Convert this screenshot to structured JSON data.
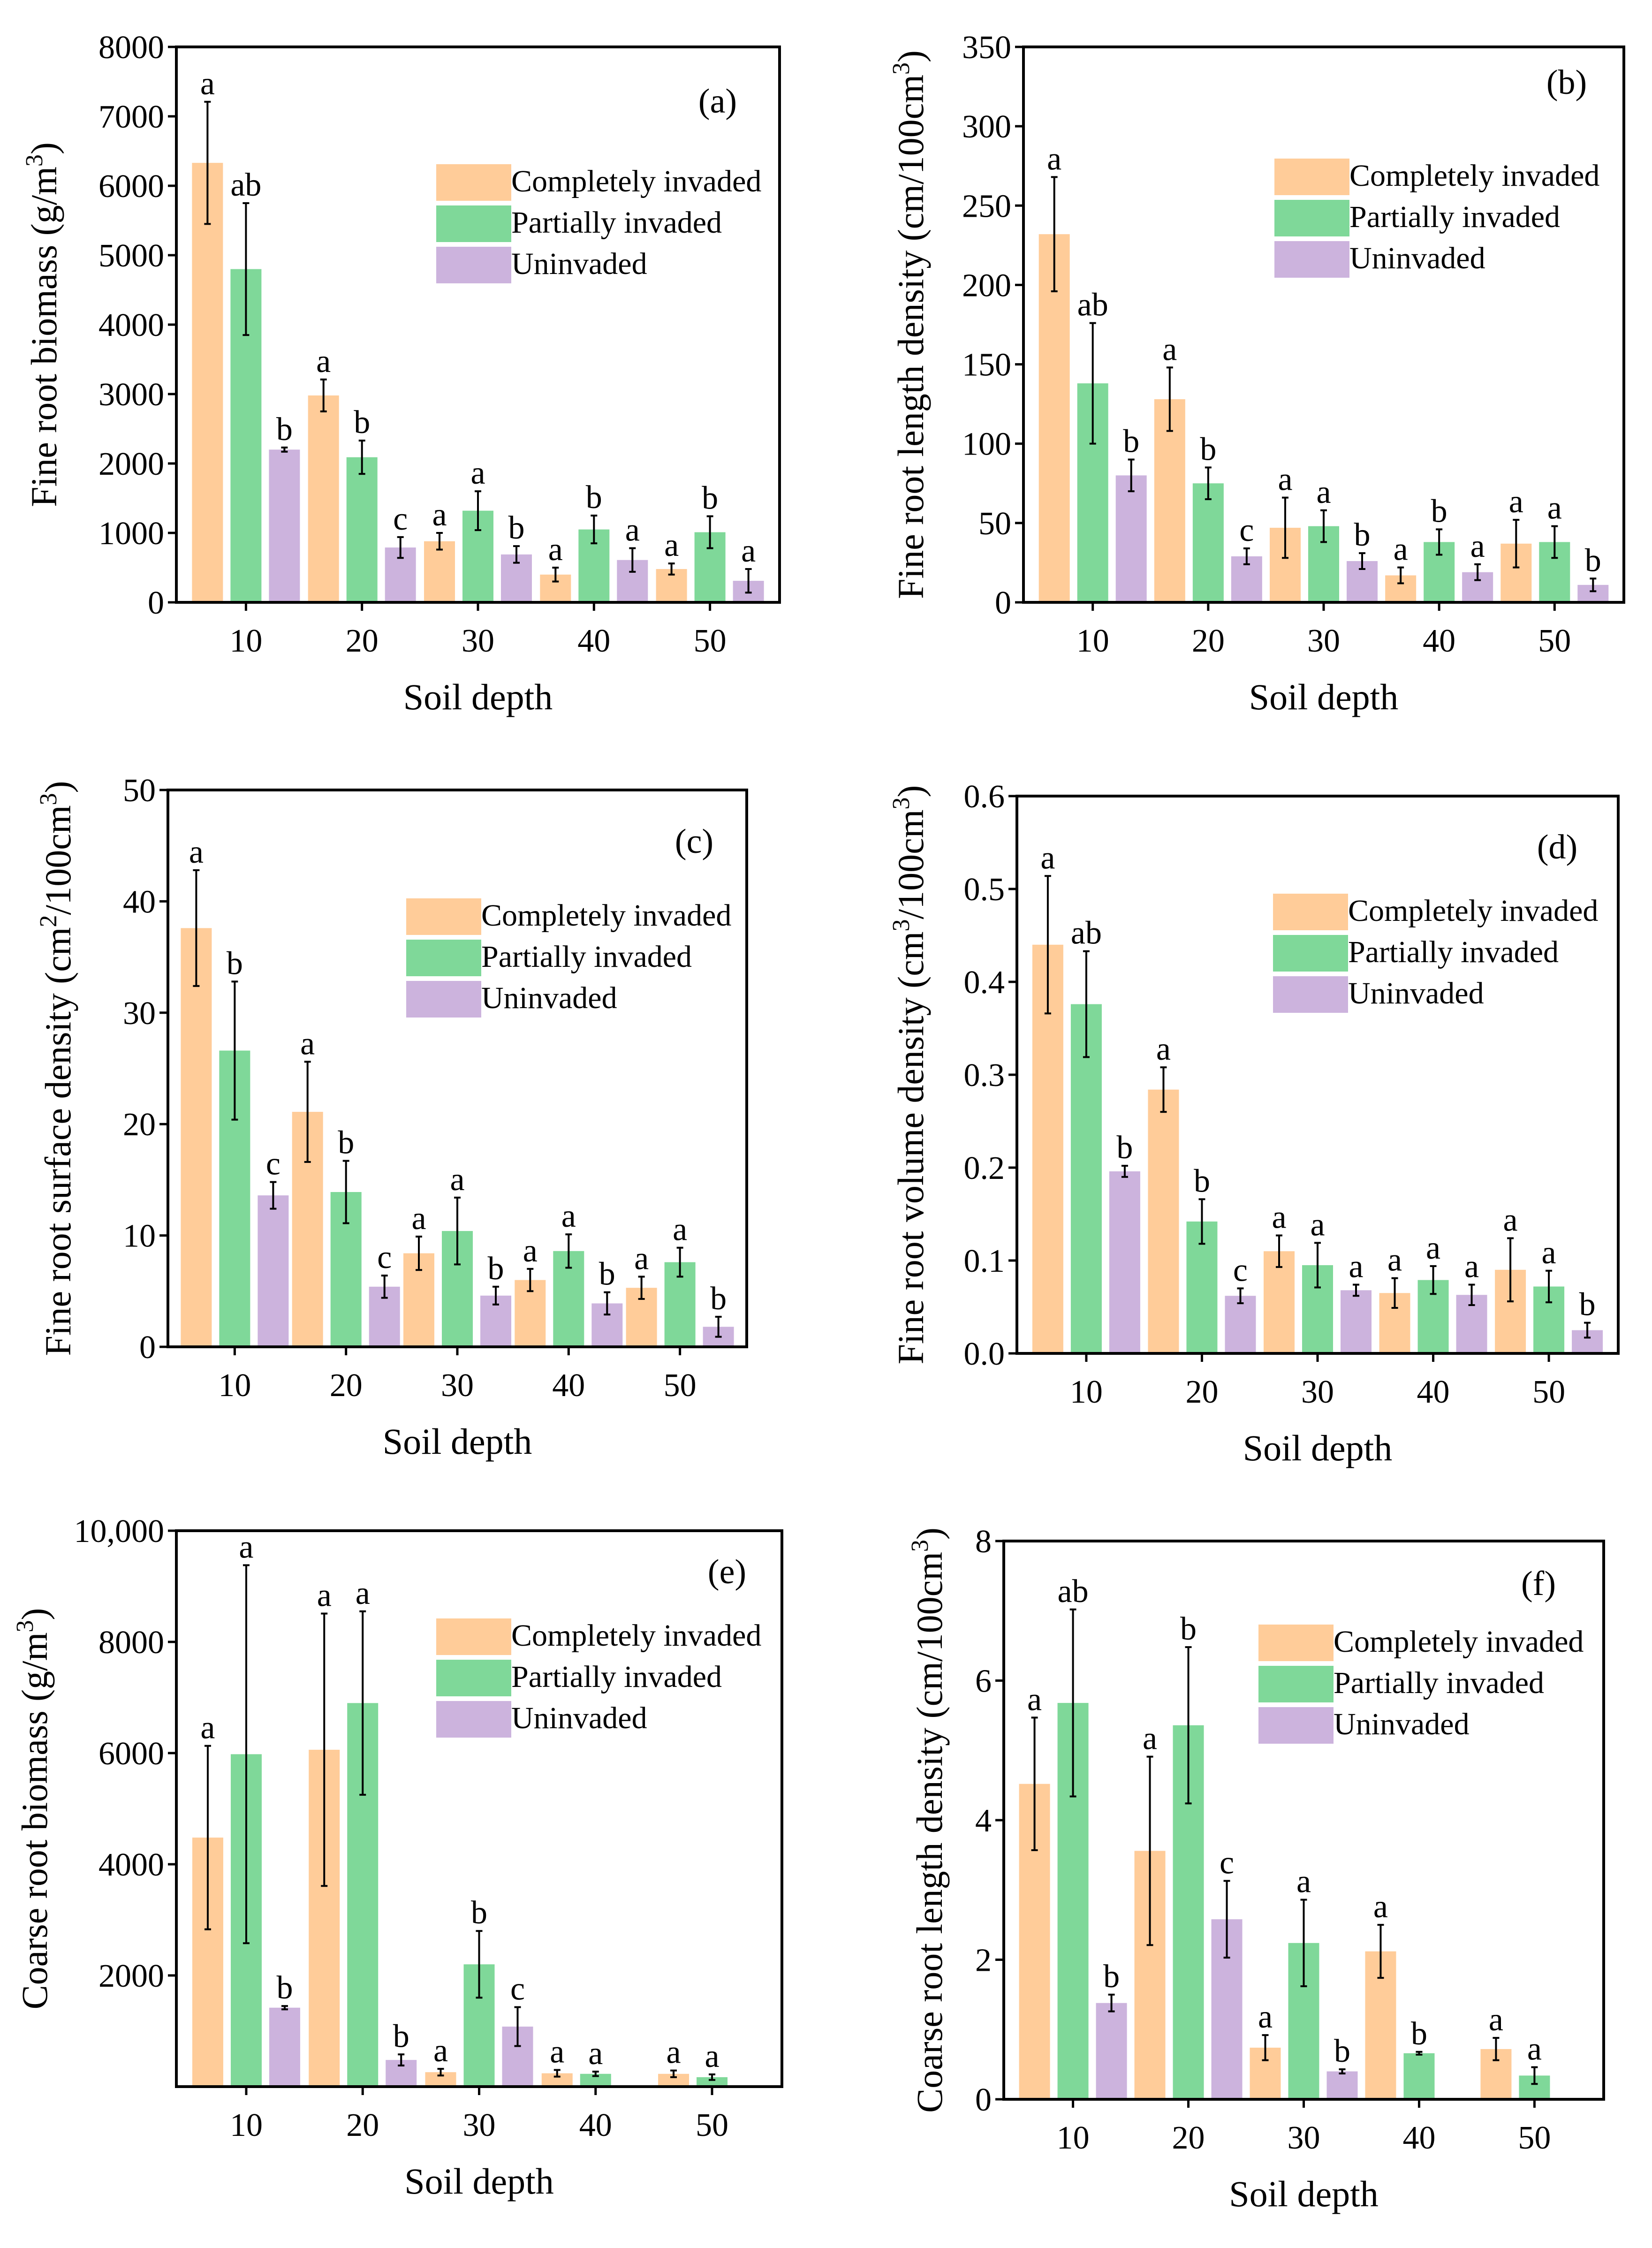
{
  "figure": {
    "xlabel": "Soil depth",
    "categories": [
      "10",
      "20",
      "30",
      "40",
      "50"
    ],
    "legend": [
      "Completely invaded",
      "Partially invaded",
      "Uninvaded"
    ],
    "colors": [
      "#ffcc99",
      "#7fd899",
      "#ccb3dd"
    ]
  },
  "chart_data": [
    {
      "type": "bar",
      "panel": "(a)",
      "ylabel": "Fine root biomass (g/m3)",
      "ylabel_parts": [
        "Fine root biomass (g/m",
        "3",
        ")"
      ],
      "xlabel": "Soil depth",
      "categories": [
        "10",
        "20",
        "30",
        "40",
        "50"
      ],
      "ylim": [
        0,
        8000
      ],
      "yticks": [
        0,
        1000,
        2000,
        3000,
        4000,
        5000,
        6000,
        7000,
        8000
      ],
      "ytick_labels": [
        "0",
        "1000",
        "2000",
        "3000",
        "4000",
        "5000",
        "6000",
        "7000",
        "8000"
      ],
      "series": [
        {
          "name": "Completely invaded",
          "values": [
            6330,
            2980,
            880,
            400,
            480
          ],
          "errors": [
            880,
            230,
            120,
            100,
            80
          ],
          "letters": [
            "a",
            "a",
            "a",
            "a",
            "a"
          ]
        },
        {
          "name": "Partially invaded",
          "values": [
            4800,
            2090,
            1320,
            1050,
            1010
          ],
          "errors": [
            950,
            240,
            280,
            200,
            230
          ],
          "letters": [
            "ab",
            "b",
            "a",
            "b",
            "b"
          ]
        },
        {
          "name": "Uninvaded",
          "values": [
            2200,
            790,
            690,
            610,
            310
          ],
          "errors": [
            30,
            150,
            120,
            170,
            170
          ],
          "letters": [
            "b",
            "c",
            "b",
            "a",
            "a"
          ]
        }
      ]
    },
    {
      "type": "bar",
      "panel": "(b)",
      "ylabel": "Fine root length density (cm/100cm3)",
      "ylabel_parts": [
        "Fine root length density (cm/100cm",
        "3",
        ")"
      ],
      "xlabel": "Soil depth",
      "categories": [
        "10",
        "20",
        "30",
        "40",
        "50"
      ],
      "ylim": [
        0,
        350
      ],
      "yticks": [
        0,
        50,
        100,
        150,
        200,
        250,
        300,
        350
      ],
      "ytick_labels": [
        "0",
        "50",
        "100",
        "150",
        "200",
        "250",
        "300",
        "350"
      ],
      "series": [
        {
          "name": "Completely invaded",
          "values": [
            232,
            128,
            47,
            17,
            37
          ],
          "errors": [
            36,
            20,
            19,
            5,
            15
          ],
          "letters": [
            "a",
            "a",
            "a",
            "a",
            "a"
          ]
        },
        {
          "name": "Partially invaded",
          "values": [
            138,
            75,
            48,
            38,
            38
          ],
          "errors": [
            38,
            10,
            10,
            8,
            10
          ],
          "letters": [
            "ab",
            "b",
            "a",
            "b",
            "a"
          ]
        },
        {
          "name": "Uninvaded",
          "values": [
            80,
            29,
            26,
            19,
            11
          ],
          "errors": [
            10,
            5,
            5,
            5,
            4
          ],
          "letters": [
            "b",
            "c",
            "b",
            "a",
            "b"
          ]
        }
      ]
    },
    {
      "type": "bar",
      "panel": "(c)",
      "ylabel": "Fine root surface density (cm2/100cm3)",
      "ylabel_parts": [
        "Fine root surface density (cm",
        "2",
        "/100cm",
        "3",
        ")"
      ],
      "xlabel": "Soil depth",
      "categories": [
        "10",
        "20",
        "30",
        "40",
        "50"
      ],
      "ylim": [
        0,
        50
      ],
      "yticks": [
        0,
        10,
        20,
        30,
        40,
        50
      ],
      "ytick_labels": [
        "0",
        "10",
        "20",
        "30",
        "40",
        "50"
      ],
      "series": [
        {
          "name": "Completely invaded",
          "values": [
            37.6,
            21.1,
            8.4,
            6.0,
            5.3
          ],
          "errors": [
            5.2,
            4.5,
            1.5,
            1.0,
            1.0
          ],
          "letters": [
            "a",
            "a",
            "a",
            "a",
            "a"
          ]
        },
        {
          "name": "Partially invaded",
          "values": [
            26.6,
            13.9,
            10.4,
            8.6,
            7.6
          ],
          "errors": [
            6.2,
            2.8,
            3.0,
            1.5,
            1.3
          ],
          "letters": [
            "b",
            "b",
            "a",
            "a",
            "a"
          ]
        },
        {
          "name": "Uninvaded",
          "values": [
            13.6,
            5.4,
            4.6,
            3.9,
            1.8
          ],
          "errors": [
            1.2,
            1.0,
            0.8,
            1.0,
            0.9
          ],
          "letters": [
            "c",
            "c",
            "b",
            "b",
            "b"
          ]
        }
      ]
    },
    {
      "type": "bar",
      "panel": "(d)",
      "ylabel": "Fine root volume density (cm3/100cm3)",
      "ylabel_parts": [
        "Fine root volume density (cm",
        "3",
        "/100cm",
        "3",
        ")"
      ],
      "xlabel": "Soil depth",
      "categories": [
        "10",
        "20",
        "30",
        "40",
        "50"
      ],
      "ylim": [
        0,
        0.6
      ],
      "yticks": [
        0,
        0.1,
        0.2,
        0.3,
        0.4,
        0.5,
        0.6
      ],
      "ytick_labels": [
        "0.0",
        "0.1",
        "0.2",
        "0.3",
        "0.4",
        "0.5",
        "0.6"
      ],
      "series": [
        {
          "name": "Completely invaded",
          "values": [
            0.44,
            0.284,
            0.11,
            0.065,
            0.09
          ],
          "errors": [
            0.074,
            0.024,
            0.017,
            0.016,
            0.034
          ],
          "letters": [
            "a",
            "a",
            "a",
            "a",
            "a"
          ]
        },
        {
          "name": "Partially invaded",
          "values": [
            0.376,
            0.142,
            0.095,
            0.079,
            0.072
          ],
          "errors": [
            0.057,
            0.024,
            0.024,
            0.015,
            0.017
          ],
          "letters": [
            "ab",
            "b",
            "a",
            "a",
            "a"
          ]
        },
        {
          "name": "Uninvaded",
          "values": [
            0.196,
            0.062,
            0.068,
            0.063,
            0.025
          ],
          "errors": [
            0.006,
            0.008,
            0.006,
            0.011,
            0.008
          ],
          "letters": [
            "b",
            "c",
            "a",
            "a",
            "b"
          ]
        }
      ]
    },
    {
      "type": "bar",
      "panel": "(e)",
      "ylabel": "Coarse root biomass (g/m3)",
      "ylabel_parts": [
        "Coarse root biomass (g/m",
        "3",
        ")"
      ],
      "xlabel": "Soil depth",
      "categories": [
        "10",
        "20",
        "30",
        "40",
        "50"
      ],
      "ylim": [
        0,
        10000
      ],
      "yticks": [
        2000,
        4000,
        6000,
        8000,
        10000
      ],
      "ytick_labels": [
        "2000",
        "4000",
        "6000",
        "8000",
        "10,000"
      ],
      "series": [
        {
          "name": "Completely invaded",
          "values": [
            4480,
            6060,
            260,
            240,
            230
          ],
          "errors": [
            1650,
            2450,
            60,
            60,
            60
          ],
          "letters": [
            "a",
            "a",
            "a",
            "a",
            "a"
          ]
        },
        {
          "name": "Partially invaded",
          "values": [
            5980,
            6900,
            2200,
            230,
            170
          ],
          "errors": [
            3400,
            1650,
            600,
            40,
            50
          ],
          "letters": [
            "a",
            "a",
            "b",
            "a",
            "a"
          ]
        },
        {
          "name": "Uninvaded",
          "values": [
            1420,
            480,
            1080,
            null,
            null
          ],
          "errors": [
            30,
            100,
            350,
            null,
            null
          ],
          "letters": [
            "b",
            "b",
            "c",
            "",
            ""
          ]
        }
      ]
    },
    {
      "type": "bar",
      "panel": "(f)",
      "ylabel": "Coarse root length density (cm/100cm3)",
      "ylabel_parts": [
        "Coarse root length density (cm/100cm",
        "3",
        ")"
      ],
      "xlabel": "Soil depth",
      "categories": [
        "10",
        "20",
        "30",
        "40",
        "50"
      ],
      "ylim": [
        0,
        8
      ],
      "yticks": [
        0,
        2,
        4,
        6,
        8
      ],
      "ytick_labels": [
        "0",
        "2",
        "4",
        "6",
        "8"
      ],
      "series": [
        {
          "name": "Completely invaded",
          "values": [
            4.52,
            3.56,
            0.74,
            2.12,
            0.72
          ],
          "errors": [
            0.95,
            1.35,
            0.18,
            0.38,
            0.16
          ],
          "letters": [
            "a",
            "a",
            "a",
            "a",
            "a"
          ]
        },
        {
          "name": "Partially invaded",
          "values": [
            5.68,
            5.36,
            2.24,
            0.66,
            0.34
          ],
          "errors": [
            1.34,
            1.12,
            0.62,
            0.02,
            0.12
          ],
          "letters": [
            "ab",
            "b",
            "a",
            "b",
            "a"
          ]
        },
        {
          "name": "Uninvaded",
          "values": [
            1.38,
            2.58,
            0.4,
            null,
            null
          ],
          "errors": [
            0.12,
            0.55,
            0.03,
            null,
            null
          ],
          "letters": [
            "b",
            "c",
            "b",
            "",
            ""
          ]
        }
      ]
    }
  ]
}
